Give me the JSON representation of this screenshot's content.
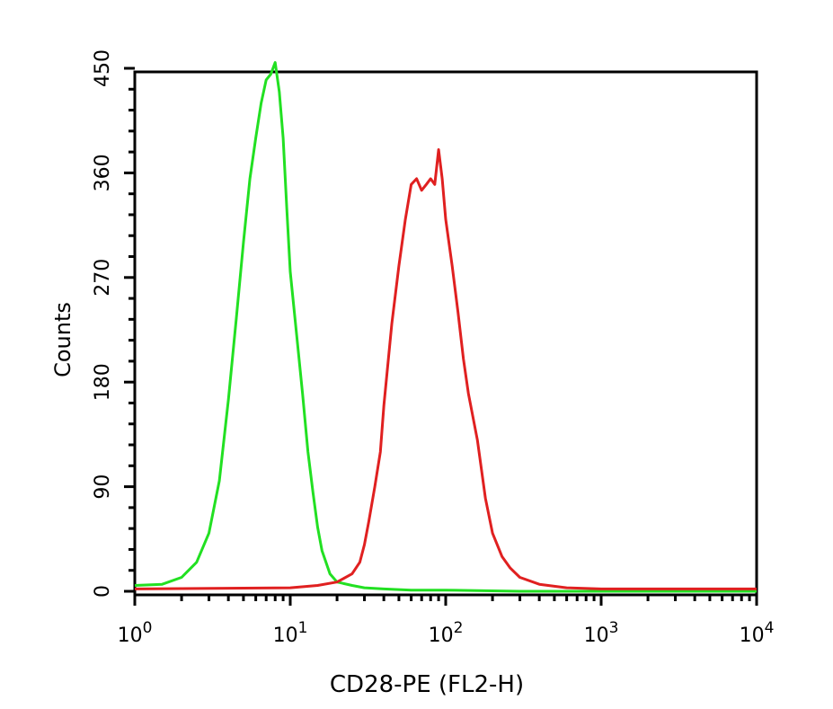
{
  "chart_data": {
    "type": "line",
    "title": "",
    "xlabel": "CD28-PE (FL2-H)",
    "ylabel": "Counts",
    "xscale": "log",
    "xlim": [
      1,
      10000
    ],
    "ylim": [
      0,
      450
    ],
    "grid": false,
    "x_ticks": [
      {
        "value": 1,
        "base": "10",
        "exp": "0"
      },
      {
        "value": 10,
        "base": "10",
        "exp": "1"
      },
      {
        "value": 100,
        "base": "10",
        "exp": "2"
      },
      {
        "value": 1000,
        "base": "10",
        "exp": "3"
      },
      {
        "value": 10000,
        "base": "10",
        "exp": "4"
      }
    ],
    "y_ticks": [
      {
        "value": 0,
        "label": "0"
      },
      {
        "value": 90,
        "label": "90"
      },
      {
        "value": 180,
        "label": "180"
      },
      {
        "value": 270,
        "label": "270"
      },
      {
        "value": 360,
        "label": "360"
      },
      {
        "value": 450,
        "label": "450"
      }
    ],
    "series": [
      {
        "color": "#22e022",
        "x": [
          1,
          1.5,
          2,
          2.5,
          3,
          3.5,
          4,
          4.5,
          5,
          5.5,
          6,
          6.5,
          7,
          7.5,
          8,
          8.5,
          9,
          9.5,
          10,
          11,
          12,
          13,
          14,
          15,
          16,
          18,
          20,
          25,
          30,
          40,
          60,
          100,
          300,
          1000,
          10000
        ],
        "y": [
          5,
          6,
          12,
          25,
          50,
          95,
          165,
          235,
          300,
          355,
          390,
          420,
          440,
          445,
          455,
          430,
          390,
          330,
          275,
          220,
          170,
          120,
          85,
          55,
          35,
          15,
          8,
          5,
          3,
          2,
          1,
          1,
          0,
          0,
          0
        ]
      },
      {
        "color": "#e02020",
        "x": [
          1,
          10,
          15,
          20,
          25,
          28,
          30,
          32,
          35,
          38,
          40,
          45,
          50,
          55,
          60,
          65,
          70,
          75,
          80,
          85,
          90,
          95,
          100,
          110,
          120,
          130,
          140,
          160,
          180,
          200,
          230,
          260,
          300,
          400,
          600,
          1000,
          10000
        ],
        "y": [
          2,
          3,
          5,
          8,
          15,
          25,
          40,
          60,
          90,
          120,
          160,
          230,
          280,
          320,
          350,
          355,
          345,
          350,
          355,
          350,
          380,
          355,
          320,
          280,
          240,
          200,
          170,
          130,
          80,
          50,
          30,
          20,
          12,
          6,
          3,
          2,
          2
        ]
      }
    ]
  }
}
